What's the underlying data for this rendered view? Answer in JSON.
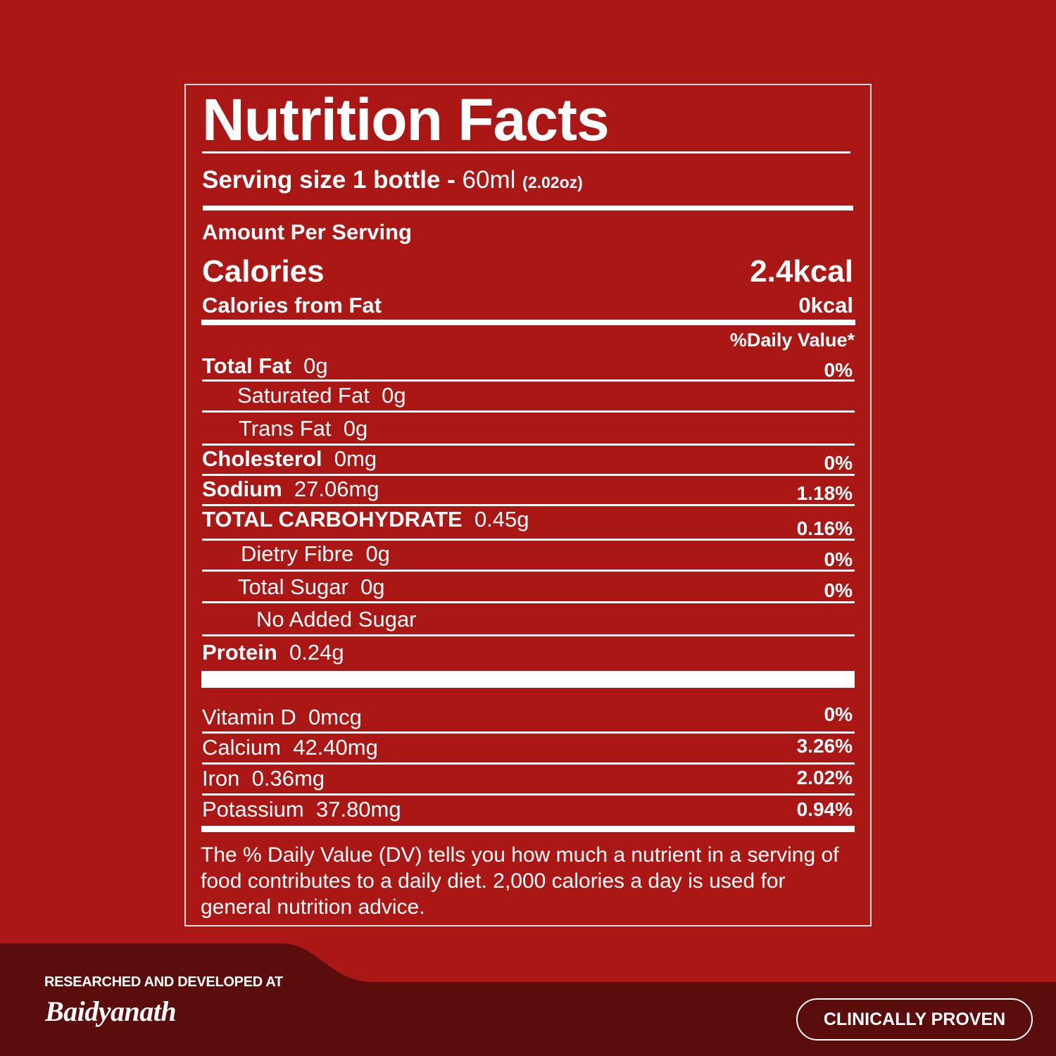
{
  "label": {
    "title": "Nutrition Facts",
    "serving_prefix": "Serving size 1 bottle - ",
    "serving_amount": "60ml",
    "serving_oz": "(2.02oz)",
    "amount_per_serving": "Amount Per Serving",
    "calories_label": "Calories",
    "calories_value": "2.4kcal",
    "calories_fat_label": "Calories from Fat",
    "calories_fat_value": "0kcal",
    "daily_value_header": "%Daily Value*",
    "rows": [
      {
        "name": "Total Fat",
        "amount": "0g",
        "dv": "0%"
      },
      {
        "name": "Saturated Fat",
        "amount": "0g",
        "dv": ""
      },
      {
        "name": "Trans Fat",
        "amount": "0g",
        "dv": ""
      },
      {
        "name": "Cholesterol",
        "amount": "0mg",
        "dv": "0%"
      },
      {
        "name": "Sodium",
        "amount": "27.06mg",
        "dv": "1.18%"
      },
      {
        "name": "TOTAL CARBOHYDRATE",
        "amount": "0.45g",
        "dv": "0.16%"
      },
      {
        "name": "Dietry Fibre",
        "amount": "0g",
        "dv": "0%"
      },
      {
        "name": "Total Sugar",
        "amount": "0g",
        "dv": "0%"
      },
      {
        "name": "No Added Sugar",
        "amount": "",
        "dv": ""
      },
      {
        "name": "Protein",
        "amount": "0.24g",
        "dv": ""
      }
    ],
    "vitamins": [
      {
        "name": "Vitamin D",
        "amount": "0mcg",
        "dv": "0%"
      },
      {
        "name": "Calcium",
        "amount": "42.40mg",
        "dv": "3.26%"
      },
      {
        "name": "Iron",
        "amount": "0.36mg",
        "dv": "2.02%"
      },
      {
        "name": "Potassium",
        "amount": "37.80mg",
        "dv": "0.94%"
      }
    ],
    "footnote": "The % Daily Value (DV) tells you how much a nutrient in a serving of food contributes to a daily diet. 2,000 calories a day is used for general nutrition advice."
  },
  "footer": {
    "researched": "RESEARCHED AND DEVELOPED AT",
    "brand": "Baidyanath",
    "badge": "CLINICALLY PROVEN"
  },
  "colors": {
    "background": "#ab1715",
    "band_dark": "#5a0d0b",
    "text": "#ffffff"
  }
}
